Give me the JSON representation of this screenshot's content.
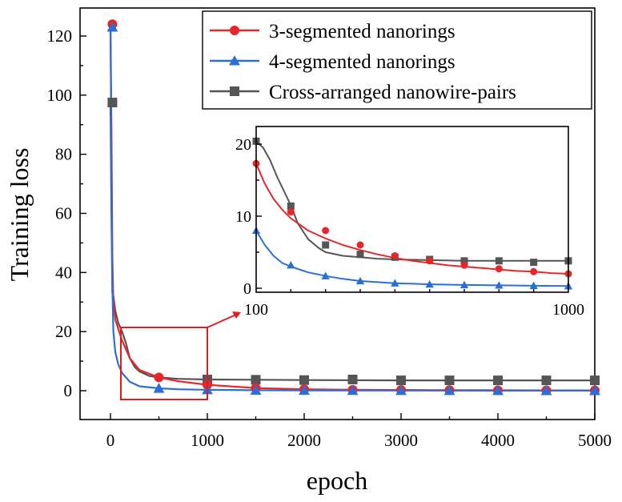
{
  "chart_data": {
    "type": "line",
    "xlabel": "epoch",
    "ylabel": "Training loss",
    "xlim": [
      -300,
      5000
    ],
    "ylim": [
      -10,
      130
    ],
    "xticks": [
      0,
      1000,
      2000,
      3000,
      4000,
      5000
    ],
    "yticks": [
      0,
      20,
      40,
      60,
      80,
      100,
      120
    ],
    "grid": false,
    "legend_position": "top-right",
    "series": [
      {
        "name": "3-segmented nanorings",
        "color": "#e8262a",
        "marker": "circle",
        "x": [
          0,
          10,
          20,
          30,
          50,
          80,
          120,
          200,
          300,
          500,
          700,
          1000,
          1500,
          2000,
          2500,
          3000,
          3500,
          4000,
          4500,
          5000
        ],
        "y": [
          124,
          90,
          45,
          30,
          24,
          21,
          17,
          11,
          7,
          4.5,
          3.2,
          2.0,
          0.9,
          0.5,
          0.3,
          0.25,
          0.2,
          0.15,
          0.12,
          0.1
        ],
        "marker_x": [
          20,
          500,
          1000,
          1500,
          2000,
          2500,
          3000,
          3500,
          4000,
          4500,
          5000
        ],
        "marker_y": [
          124,
          4.5,
          2.0,
          0.9,
          0.5,
          0.3,
          0.25,
          0.2,
          0.15,
          0.12,
          0.1
        ]
      },
      {
        "name": "4-segmented nanorings",
        "color": "#2a6fd6",
        "marker": "triangle",
        "x": [
          0,
          10,
          20,
          30,
          50,
          80,
          120,
          200,
          300,
          500,
          700,
          1000,
          1500,
          2000,
          3000,
          4000,
          5000
        ],
        "y": [
          123,
          80,
          35,
          20,
          13,
          9,
          6,
          3,
          1.5,
          0.8,
          0.5,
          0.3,
          0.15,
          0.1,
          0.05,
          0.03,
          0.02
        ],
        "marker_x": [
          20,
          500,
          1000,
          1500,
          2000,
          2500,
          3000,
          3500,
          4000,
          4500,
          5000
        ],
        "marker_y": [
          123,
          0.8,
          0.3,
          0.15,
          0.1,
          0.07,
          0.05,
          0.04,
          0.03,
          0.02,
          0.02
        ]
      },
      {
        "name": "Cross-arranged nanowire-pairs",
        "color": "#555555",
        "marker": "square",
        "x": [
          0,
          10,
          20,
          30,
          50,
          80,
          120,
          160,
          200,
          250,
          300,
          400,
          500,
          700,
          1000,
          1500,
          2000,
          3000,
          4000,
          5000
        ],
        "y": [
          97.5,
          60,
          33,
          32,
          27,
          23,
          20,
          16,
          11,
          8,
          6.5,
          5,
          4.5,
          4,
          3.8,
          3.7,
          3.6,
          3.5,
          3.5,
          3.5
        ],
        "marker_x": [
          20,
          1000,
          1500,
          2000,
          2500,
          3000,
          3500,
          4000,
          4500,
          5000
        ],
        "marker_y": [
          97.5,
          3.8,
          3.7,
          3.6,
          3.8,
          3.5,
          3.5,
          3.5,
          3.5,
          3.5
        ]
      }
    ],
    "inset": {
      "xlim": [
        100,
        1000
      ],
      "ylim": [
        -1,
        22
      ],
      "xtick_labels": [
        "100",
        "1000"
      ],
      "yticks": [
        0,
        10,
        20
      ],
      "series": [
        {
          "name": "3-segmented nanorings",
          "x": [
            100,
            125,
            150,
            175,
            200,
            250,
            300,
            350,
            400,
            450,
            500,
            550,
            600,
            650,
            700,
            750,
            800,
            850,
            900,
            950,
            1000
          ],
          "y": [
            17.3,
            14.5,
            12.4,
            10.9,
            9.7,
            8.0,
            6.9,
            6.0,
            5.3,
            4.7,
            4.2,
            3.8,
            3.5,
            3.2,
            3.0,
            2.8,
            2.6,
            2.4,
            2.3,
            2.1,
            2.0
          ],
          "marker_x": [
            100,
            200,
            300,
            400,
            500,
            600,
            700,
            800,
            900,
            1000
          ],
          "marker_y": [
            17.3,
            10.6,
            8.0,
            6.0,
            4.5,
            3.8,
            3.2,
            2.7,
            2.3,
            2.0
          ]
        },
        {
          "name": "4-segmented nanorings",
          "x": [
            100,
            125,
            150,
            175,
            200,
            250,
            300,
            350,
            400,
            450,
            500,
            600,
            700,
            800,
            900,
            1000
          ],
          "y": [
            8.0,
            6.0,
            4.5,
            3.5,
            3.0,
            2.2,
            1.7,
            1.3,
            1.0,
            0.85,
            0.7,
            0.55,
            0.45,
            0.4,
            0.35,
            0.3
          ],
          "marker_x": [
            100,
            200,
            300,
            400,
            500,
            600,
            700,
            800,
            900,
            1000
          ],
          "marker_y": [
            8.0,
            3.2,
            1.7,
            1.0,
            0.7,
            0.55,
            0.45,
            0.4,
            0.35,
            0.3
          ]
        },
        {
          "name": "Cross-arranged nanowire-pairs",
          "x": [
            100,
            120,
            140,
            160,
            180,
            200,
            220,
            250,
            280,
            300,
            350,
            400,
            450,
            500,
            600,
            700,
            800,
            900,
            1000
          ],
          "y": [
            20.4,
            19.5,
            17.8,
            15.5,
            13.5,
            11.5,
            9.0,
            6.8,
            5.6,
            5.0,
            4.5,
            4.3,
            4.1,
            4.0,
            3.9,
            3.8,
            3.8,
            3.8,
            3.8
          ],
          "marker_x": [
            100,
            200,
            300,
            400,
            500,
            600,
            700,
            800,
            900,
            1000
          ],
          "marker_y": [
            20.4,
            11.4,
            6.0,
            4.7,
            4.3,
            4.0,
            3.8,
            3.8,
            3.6,
            3.8
          ]
        }
      ]
    }
  }
}
